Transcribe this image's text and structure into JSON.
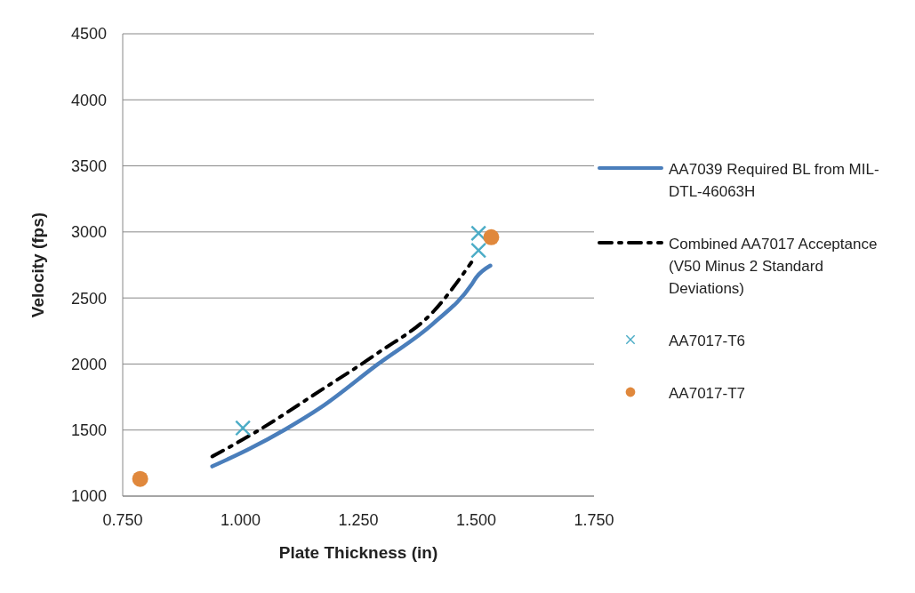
{
  "chart_data": {
    "type": "line",
    "xlabel": "Plate Thickness (in)",
    "ylabel": "Velocity (fps)",
    "xlim": [
      0.75,
      1.75
    ],
    "xticks": [
      {
        "value": 0.75,
        "label": "0.750"
      },
      {
        "value": 1.0,
        "label": "1.000"
      },
      {
        "value": 1.25,
        "label": "1.250"
      },
      {
        "value": 1.5,
        "label": "1.500"
      },
      {
        "value": 1.75,
        "label": "1.750"
      }
    ],
    "ylim": [
      1000,
      4500
    ],
    "yticks": [
      1000,
      1500,
      2000,
      2500,
      3000,
      3500,
      4000,
      4500
    ],
    "grid": "y",
    "legend": "right",
    "series": [
      {
        "name": "AA7039 Required BL from MIL-DTL-46063H",
        "color": "#4a7ebb",
        "line_style": "solid",
        "marker": "none",
        "x": [
          0.94,
          1.02,
          1.095,
          1.17,
          1.29,
          1.41,
          1.49,
          1.5,
          1.53
        ],
        "values": [
          1225,
          1360,
          1505,
          1670,
          1995,
          2310,
          2600,
          2655,
          2745
        ]
      },
      {
        "name": "Combined AA7017 Acceptance (V50 Minus 2 Standard Deviations)",
        "color": "#000000",
        "line_style": "dashed",
        "marker": "none",
        "x": [
          0.94,
          1.03,
          1.17,
          1.29,
          1.41,
          1.49
        ],
        "values": [
          1300,
          1480,
          1800,
          2080,
          2400,
          2770
        ]
      },
      {
        "name": "AA7017-T6",
        "type": "scatter",
        "color": "#4bacc6",
        "marker": "cross",
        "x": [
          1.005,
          1.505,
          1.505
        ],
        "values": [
          1515,
          2990,
          2860
        ]
      },
      {
        "name": "AA7017-T7",
        "type": "scatter",
        "color": "#e0883c",
        "marker": "circle",
        "x": [
          0.787,
          1.532
        ],
        "values": [
          1130,
          2960
        ]
      }
    ]
  }
}
